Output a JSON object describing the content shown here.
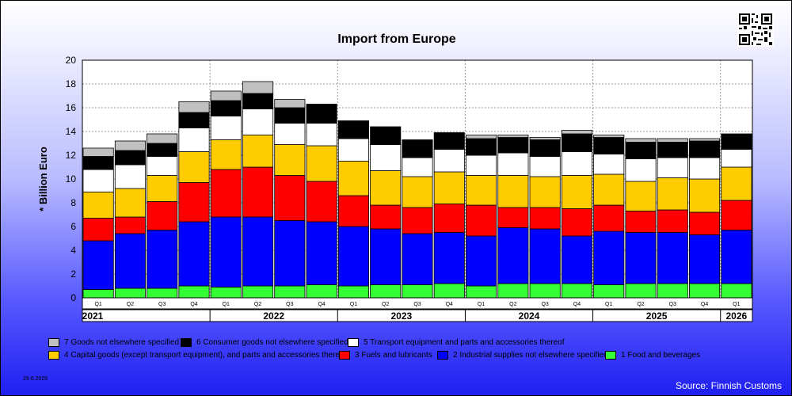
{
  "chart_data": {
    "type": "bar",
    "stacked": true,
    "title": "Import from Europe",
    "ylabel": "* Billion Euro",
    "ylim": [
      0,
      20
    ],
    "yticks": [
      0,
      2,
      4,
      6,
      8,
      10,
      12,
      14,
      16,
      18,
      20
    ],
    "grid": true,
    "legend_position": "bottom",
    "categories": [
      "Q1",
      "Q2",
      "Q3",
      "Q4",
      "Q1",
      "Q2",
      "Q3",
      "Q4",
      "Q1",
      "Q2",
      "Q3",
      "Q4",
      "Q1",
      "Q2",
      "Q3",
      "Q4",
      "Q1",
      "Q2",
      "Q3",
      "Q4",
      "Q1"
    ],
    "years": [
      {
        "label": "2021",
        "start": 0,
        "end": 4
      },
      {
        "label": "2022",
        "start": 4,
        "end": 8
      },
      {
        "label": "2023",
        "start": 8,
        "end": 12
      },
      {
        "label": "2024",
        "start": 12,
        "end": 16
      },
      {
        "label": "2025",
        "start": 16,
        "end": 20
      },
      {
        "label": "2026",
        "start": 20,
        "end": 21
      }
    ],
    "series": [
      {
        "name": "1 Food and beverages",
        "color": "#33ff33",
        "values": [
          0.7,
          0.8,
          0.8,
          1.0,
          0.9,
          1.0,
          1.0,
          1.1,
          1.0,
          1.1,
          1.1,
          1.2,
          1.0,
          1.2,
          1.2,
          1.2,
          1.1,
          1.2,
          1.2,
          1.2,
          1.2
        ]
      },
      {
        "name": "2 Industrial supplies not elsewhere specified",
        "color": "#0000ff",
        "values": [
          4.1,
          4.6,
          4.9,
          5.4,
          5.9,
          5.8,
          5.5,
          5.3,
          5.0,
          4.7,
          4.3,
          4.3,
          4.2,
          4.7,
          4.6,
          4.0,
          4.5,
          4.3,
          4.3,
          4.1,
          4.5
        ]
      },
      {
        "name": "3 Fuels and lubricants",
        "color": "#ff0000",
        "values": [
          1.9,
          1.4,
          2.4,
          3.3,
          4.0,
          4.2,
          3.8,
          3.4,
          2.6,
          2.0,
          2.2,
          2.4,
          2.6,
          1.7,
          1.8,
          2.3,
          2.2,
          1.8,
          1.9,
          1.9,
          2.5
        ]
      },
      {
        "name": "4 Capital goods (except transport equipment), and parts and accessories thereof",
        "color": "#ffcc00",
        "values": [
          2.2,
          2.4,
          2.2,
          2.6,
          2.5,
          2.7,
          2.6,
          3.0,
          2.9,
          2.9,
          2.6,
          2.7,
          2.5,
          2.7,
          2.6,
          2.8,
          2.6,
          2.5,
          2.7,
          2.8,
          2.8
        ]
      },
      {
        "name": "5  Transport equipment and parts and accessories thereof",
        "color": "#ffffff",
        "values": [
          1.9,
          2.0,
          1.6,
          2.0,
          2.0,
          2.2,
          1.8,
          1.9,
          1.9,
          2.2,
          1.6,
          1.9,
          1.7,
          1.9,
          1.7,
          2.0,
          1.7,
          1.9,
          1.7,
          1.8,
          1.5
        ]
      },
      {
        "name": "6 Consumer goods not elsewhere specified",
        "color": "#000000",
        "values": [
          1.1,
          1.2,
          1.1,
          1.3,
          1.3,
          1.3,
          1.3,
          1.6,
          1.5,
          1.5,
          1.5,
          1.4,
          1.4,
          1.3,
          1.4,
          1.5,
          1.4,
          1.4,
          1.3,
          1.4,
          1.3
        ]
      },
      {
        "name": "7 Goods not elsewhere specified",
        "color": "#c0c0c0",
        "values": [
          0.7,
          0.8,
          0.8,
          0.9,
          0.8,
          1.0,
          0.7,
          0.0,
          0.0,
          0.0,
          0.0,
          0.0,
          0.3,
          0.2,
          0.2,
          0.3,
          0.2,
          0.3,
          0.3,
          0.2,
          0.0
        ]
      }
    ]
  },
  "footer": {
    "date": "29.6.2026",
    "source": "Source: Finnish Customs"
  }
}
